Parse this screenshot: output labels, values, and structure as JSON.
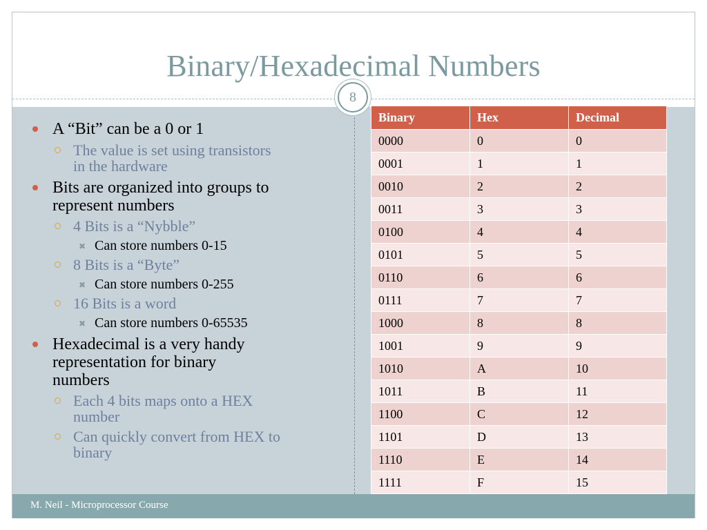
{
  "slide": {
    "title": "Binary/Hexadecimal Numbers",
    "page_number": "8",
    "footer": "M. Neil - Microprocessor Course"
  },
  "bullets": [
    {
      "level": 1,
      "text": "A “Bit” can be a 0 or 1"
    },
    {
      "level": 2,
      "text": "The value is set using transistors"
    },
    {
      "level": 2,
      "text": "in the hardware"
    },
    {
      "level": 1,
      "text": "Bits are organized into groups to"
    },
    {
      "level": 1,
      "text": "represent numbers"
    },
    {
      "level": 2,
      "text": "4 Bits is a “Nybble”"
    },
    {
      "level": 3,
      "text": "Can store numbers 0-15"
    },
    {
      "level": 2,
      "text": "8 Bits is a “Byte”"
    },
    {
      "level": 3,
      "text": "Can store numbers 0-255"
    },
    {
      "level": 2,
      "text": "16 Bits is a word"
    },
    {
      "level": 3,
      "text": "Can store numbers 0-65535"
    },
    {
      "level": 1,
      "text": "Hexadecimal is a very handy"
    },
    {
      "level": 1,
      "text": "representation for binary"
    },
    {
      "level": 1,
      "text": "numbers"
    },
    {
      "level": 2,
      "text": "Each 4 bits maps onto a HEX"
    },
    {
      "level": 2,
      "text": "number"
    },
    {
      "level": 2,
      "text": "Can quickly convert from HEX to"
    },
    {
      "level": 2,
      "text": "binary"
    }
  ],
  "table": {
    "headers": [
      "Binary",
      "Hex",
      "Decimal"
    ],
    "rows": [
      [
        "0000",
        "0",
        "0"
      ],
      [
        "0001",
        "1",
        "1"
      ],
      [
        "0010",
        "2",
        "2"
      ],
      [
        "0011",
        "3",
        "3"
      ],
      [
        "0100",
        "4",
        "4"
      ],
      [
        "0101",
        "5",
        "5"
      ],
      [
        "0110",
        "6",
        "6"
      ],
      [
        "0111",
        "7",
        "7"
      ],
      [
        "1000",
        "8",
        "8"
      ],
      [
        "1001",
        "9",
        "9"
      ],
      [
        "1010",
        "A",
        "10"
      ],
      [
        "1011",
        "B",
        "11"
      ],
      [
        "1100",
        "C",
        "12"
      ],
      [
        "1101",
        "D",
        "13"
      ],
      [
        "1110",
        "E",
        "14"
      ],
      [
        "1111",
        "F",
        "15"
      ]
    ]
  },
  "colors": {
    "title": "#7a9aa0",
    "content_background": "#c7d3d9",
    "footer_background": "#87a9ad",
    "table_header": "#d1604a",
    "table_row_odd": "#eed2d0",
    "table_row_even": "#f7e8e7",
    "bullet_level1": "#d1604a",
    "bullet_level2": "#e0a530",
    "sub_bullet_text": "#6f7f9e"
  }
}
